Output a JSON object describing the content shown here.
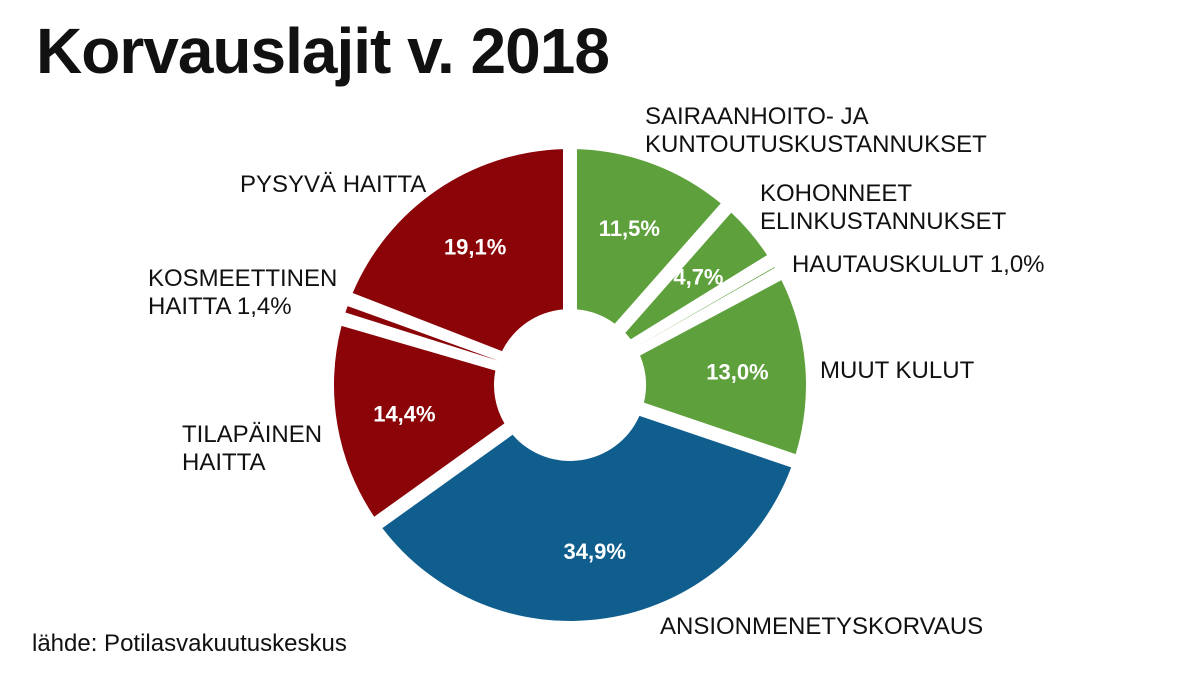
{
  "title": "Korvauslajit v. 2018",
  "source": "lähde: Potilasvakuutuskeskus",
  "colors": {
    "green": "#5ea13c",
    "blue": "#0f5e8e",
    "red": "#8b0408"
  },
  "chart_data": {
    "type": "pie",
    "variant": "donut",
    "title": "Korvauslajit v. 2018",
    "slices": [
      {
        "label_lines": [
          "SAIRAANHOITO- JA",
          "KUNTOUTUSKUSTANNUKSET"
        ],
        "value": 11.5,
        "value_label": "11,5%",
        "color": "#5ea13c"
      },
      {
        "label_lines": [
          "KOHONNEET",
          "ELINKUSTANNUKSET"
        ],
        "value": 4.7,
        "value_label": "4,7%",
        "color": "#5ea13c"
      },
      {
        "label_lines": [
          "HAUTAUSKULUT 1,0%"
        ],
        "value": 1.0,
        "value_label": "",
        "color": "#5ea13c"
      },
      {
        "label_lines": [
          "MUUT KULUT"
        ],
        "value": 13.0,
        "value_label": "13,0%",
        "color": "#5ea13c"
      },
      {
        "label_lines": [
          "ANSIONMENETYSKORVAUS"
        ],
        "value": 34.9,
        "value_label": "34,9%",
        "color": "#0f5e8e"
      },
      {
        "label_lines": [
          "TILAPÄINEN",
          "HAITTA"
        ],
        "value": 14.4,
        "value_label": "14,4%",
        "color": "#8b0408"
      },
      {
        "label_lines": [
          "KOSMEETTINEN",
          "HAITTA 1,4%"
        ],
        "value": 1.4,
        "value_label": "",
        "color": "#8b0408"
      },
      {
        "label_lines": [
          "PYSYVÄ HAITTA"
        ],
        "value": 19.1,
        "value_label": "19,1%",
        "color": "#8b0408"
      }
    ]
  }
}
